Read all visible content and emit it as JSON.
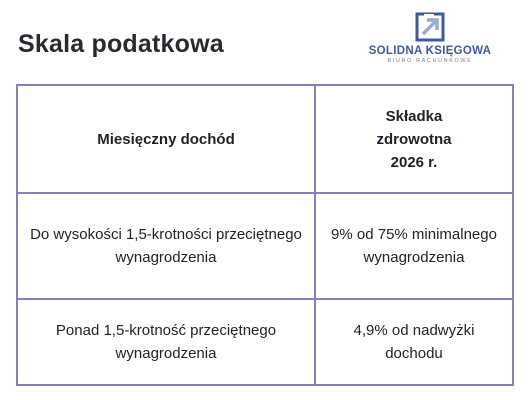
{
  "header": {
    "title": "Skala podatkowa",
    "brand_name": "SOLIDNA KSIĘGOWA",
    "brand_subtitle": "BIURO RACHUNKOWE",
    "brand_color": "#3c5a9c",
    "logo_icon": "arrow-square-logo"
  },
  "table": {
    "border_color": "#8c7fb8",
    "columns": [
      "Miesięczny dochód",
      "Składka\nzdrowotna\n2026 r."
    ],
    "rows": [
      {
        "income": "Do wysokości 1,5-krotności przeciętnego wynagrodzenia",
        "contribution": "9% od 75% minimalnego wynagrodzenia"
      },
      {
        "income": "Ponad 1,5-krotność przeciętnego wynagrodzenia",
        "contribution": "4,9% od nadwyżki dochodu"
      }
    ]
  }
}
